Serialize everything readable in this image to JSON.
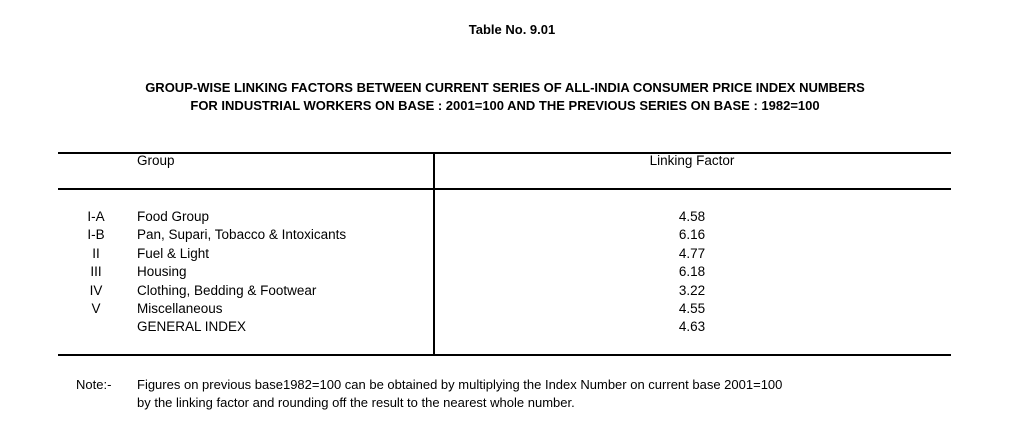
{
  "title": "Table No. 9.01",
  "heading_line1": "GROUP-WISE LINKING  FACTORS  BETWEEN  CURRENT SERIES OF ALL-INDIA  CONSUMER PRICE  INDEX  NUMBERS",
  "heading_line2": "FOR INDUSTRIAL WORKERS ON BASE : 2001=100  AND THE PREVIOUS SERIES ON BASE : 1982=100",
  "table": {
    "headers": {
      "group": "Group",
      "factor": "Linking Factor"
    },
    "rows": [
      {
        "code": "I-A",
        "group": "Food Group",
        "factor": "4.58"
      },
      {
        "code": "I-B",
        "group": "Pan, Supari, Tobacco & Intoxicants",
        "factor": "6.16"
      },
      {
        "code": "II",
        "group": "Fuel & Light",
        "factor": "4.77"
      },
      {
        "code": "III",
        "group": "Housing",
        "factor": "6.18"
      },
      {
        "code": "IV",
        "group": "Clothing, Bedding & Footwear",
        "factor": "3.22"
      },
      {
        "code": "V",
        "group": "Miscellaneous",
        "factor": "4.55"
      },
      {
        "code": "",
        "group": "GENERAL INDEX",
        "factor": "4.63"
      }
    ]
  },
  "note": {
    "label": "Note:-",
    "line1": "Figures on previous base1982=100 can be obtained by multiplying the Index Number on current base 2001=100",
    "line2": "by the linking factor and rounding off the result to the nearest whole number."
  }
}
